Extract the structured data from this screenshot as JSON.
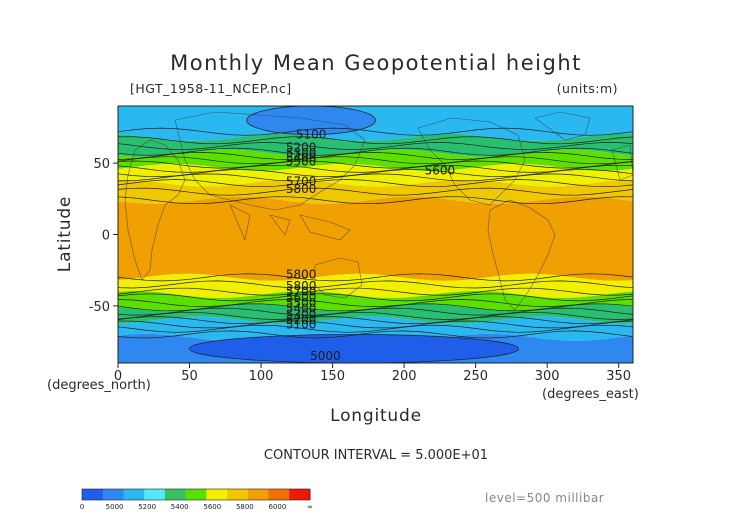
{
  "chart_data": {
    "type": "heatmap",
    "title": "Monthly Mean Geopotential height",
    "file_label": "[HGT_1958-11_NCEP.nc]",
    "units_label": "(units:m)",
    "xlabel": "Longitude",
    "ylabel": "Latitude",
    "x_unit_label": "(degrees_east)",
    "y_unit_label": "(degrees_north)",
    "xlim": [
      0,
      360
    ],
    "ylim": [
      -90,
      90
    ],
    "x_ticks": [
      0,
      50,
      100,
      150,
      200,
      250,
      300,
      350
    ],
    "y_ticks": [
      50,
      0,
      -50
    ],
    "contour_interval_text": "CONTOUR INTERVAL = 5.000E+01",
    "level_text": "level=500 millibar",
    "contour_labels": [
      "5100",
      "5200",
      "5300",
      "5400",
      "5500",
      "5600",
      "5700",
      "5800",
      "5800",
      "5800",
      "5700",
      "5600",
      "5500",
      "5400",
      "5300",
      "5200",
      "5100",
      "5000"
    ],
    "colorbar": {
      "tick_labels": [
        "0",
        "5000",
        "5200",
        "5400",
        "5600",
        "5800",
        "6000",
        "∞"
      ],
      "colors": [
        "#1e5ee8",
        "#2e88f0",
        "#29b8f0",
        "#55e8f8",
        "#38c060",
        "#58e000",
        "#f0f000",
        "#f0c800",
        "#f0a000",
        "#f07000",
        "#f01800"
      ]
    },
    "zonal_bands": [
      {
        "lat": [
          68,
          90
        ],
        "range": "5000-5100",
        "color": "#29b8f0"
      },
      {
        "lat": [
          57,
          68
        ],
        "range": "5100-5300",
        "color": "#28c070"
      },
      {
        "lat": [
          47,
          57
        ],
        "range": "5300-5500",
        "color": "#5ce000"
      },
      {
        "lat": [
          36,
          47
        ],
        "range": "5500-5700",
        "color": "#f0f000"
      },
      {
        "lat": [
          24,
          36
        ],
        "range": "5700-5800",
        "color": "#f0c800"
      },
      {
        "lat": [
          -30,
          24
        ],
        "range": ">5800",
        "color": "#f0a000"
      },
      {
        "lat": [
          -42,
          -30
        ],
        "range": "5700-5800",
        "color": "#f0f000"
      },
      {
        "lat": [
          -51,
          -42
        ],
        "range": "5500-5700",
        "color": "#5ce000"
      },
      {
        "lat": [
          -60,
          -51
        ],
        "range": "5300-5500",
        "color": "#28c070"
      },
      {
        "lat": [
          -72,
          -60
        ],
        "range": "5100-5300",
        "color": "#29b8f0"
      },
      {
        "lat": [
          -90,
          -72
        ],
        "range": "<5100",
        "color": "#2e88f0"
      }
    ],
    "features": [
      {
        "name": "northern-polar-low",
        "lon": [
          90,
          180
        ],
        "lat": [
          70,
          90
        ],
        "range": "5000-5100",
        "color": "#2e88f0"
      },
      {
        "name": "southern-polar-low",
        "lon": [
          50,
          280
        ],
        "lat": [
          -90,
          -70
        ],
        "range": "<5000",
        "color": "#1e5ee8"
      }
    ]
  }
}
